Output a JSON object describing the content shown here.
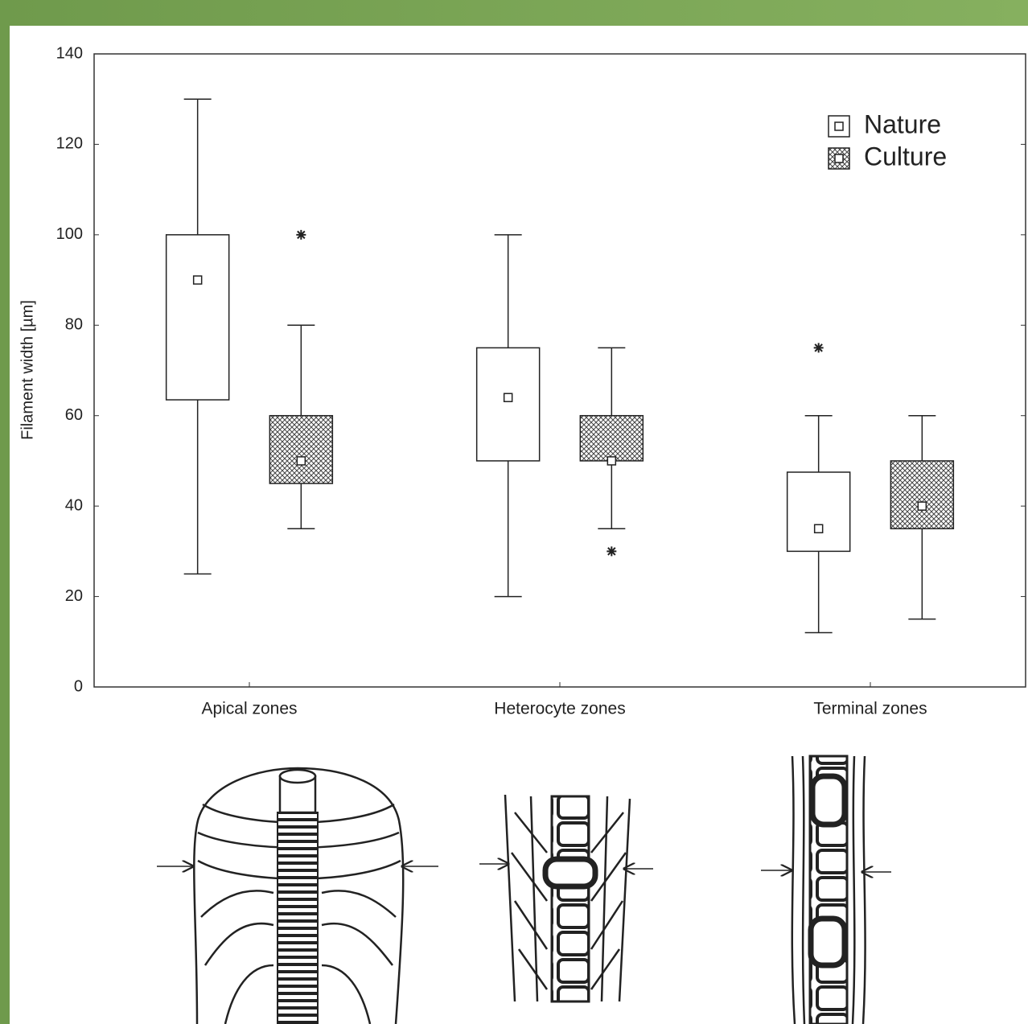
{
  "chart_data": {
    "type": "box",
    "y_label": "Filament width [µm]",
    "categories": [
      "Apical zones",
      "Heterocyte zones",
      "Terminal zones"
    ],
    "series": [
      {
        "name": "Nature",
        "fill": "#ffffff",
        "whisker_low": [
          25,
          20,
          12
        ],
        "q1": [
          63.5,
          50,
          30
        ],
        "center": [
          90,
          64,
          35
        ],
        "q3": [
          100,
          75,
          47.5
        ],
        "whisker_high": [
          130,
          100,
          60
        ],
        "outliers": [
          [],
          [],
          [
            75
          ]
        ]
      },
      {
        "name": "Culture",
        "fill": "crosshatch",
        "whisker_low": [
          35,
          35,
          15
        ],
        "q1": [
          45,
          50,
          35
        ],
        "center": [
          50,
          50,
          40
        ],
        "q3": [
          60,
          60,
          50
        ],
        "whisker_high": [
          80,
          75,
          60
        ],
        "outliers": [
          [
            100
          ],
          [
            30
          ],
          []
        ]
      }
    ],
    "ylim": [
      0,
      140
    ],
    "yticks": [
      0,
      20,
      40,
      60,
      80,
      100,
      120,
      140
    ],
    "legend": "upper right"
  }
}
